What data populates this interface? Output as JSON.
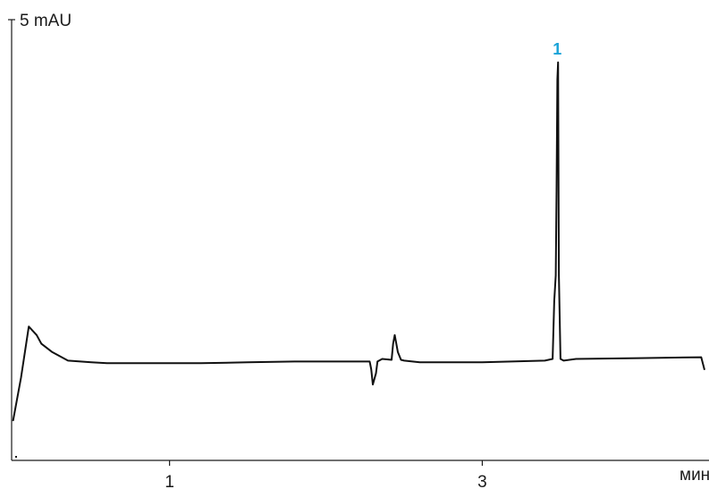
{
  "chart_data": {
    "type": "line",
    "ylabel": "5 mAU",
    "xlabel": "мин",
    "x_ticks": [
      1,
      3
    ],
    "xlim": [
      -0.01,
      4.45
    ],
    "ylim": [
      -0.17,
      5.0
    ],
    "grid": false,
    "series": [
      {
        "x": [
          0.0,
          0.05,
          0.1,
          0.15,
          0.18,
          0.25,
          0.35,
          0.5,
          0.6,
          0.7,
          0.9,
          1.2,
          1.5,
          1.8,
          2.0,
          2.1,
          2.28,
          2.29,
          2.3,
          2.32,
          2.33,
          2.36,
          2.42,
          2.43,
          2.44,
          2.46,
          2.48,
          2.5,
          2.6,
          2.8,
          3.0,
          3.4,
          3.45,
          3.46,
          3.47,
          3.475,
          3.48,
          3.485,
          3.49,
          3.5,
          3.52,
          3.6,
          4.0,
          4.4,
          4.42
        ],
        "y": [
          0.3,
          0.8,
          1.4,
          1.3,
          1.2,
          1.1,
          1.0,
          0.98,
          0.97,
          0.97,
          0.97,
          0.97,
          0.98,
          0.99,
          0.99,
          0.99,
          0.99,
          0.9,
          0.72,
          0.85,
          0.99,
          1.02,
          1.01,
          1.2,
          1.3,
          1.1,
          1.01,
          1.0,
          0.98,
          0.98,
          0.98,
          1.0,
          1.02,
          1.7,
          2.0,
          3.0,
          4.3,
          4.5,
          2.0,
          1.02,
          1.0,
          1.02,
          1.03,
          1.04,
          0.9
        ],
        "peaks": [
          {
            "label": "1",
            "x": 3.485
          }
        ]
      }
    ],
    "colors": {
      "trace": "#111111",
      "axis": "#1a1a1a",
      "peak_label": "#1aa3d8"
    }
  }
}
